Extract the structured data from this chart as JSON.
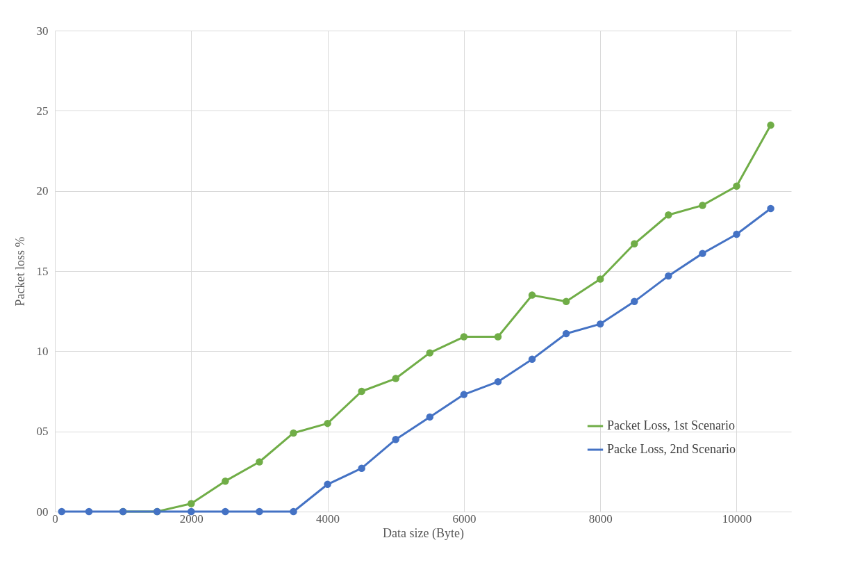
{
  "chart_data": {
    "type": "line",
    "xlabel": "Data size (Byte)",
    "ylabel": "Packet loss %",
    "x": [
      100,
      500,
      1000,
      1500,
      2000,
      2500,
      3000,
      3500,
      4000,
      4500,
      5000,
      5500,
      6000,
      6500,
      7000,
      7500,
      8000,
      8500,
      9000,
      9500,
      10000,
      10500
    ],
    "series": [
      {
        "name": "Packet Loss, 1st Scenario",
        "color": "#70ad47",
        "values": [
          null,
          null,
          0,
          0,
          0.5,
          1.9,
          3.1,
          4.9,
          5.5,
          7.5,
          8.3,
          9.9,
          10.9,
          10.9,
          13.5,
          13.1,
          14.5,
          16.7,
          18.5,
          19.1,
          20.3,
          24.1
        ]
      },
      {
        "name": "Packe Loss, 2nd Scenario",
        "color": "#4472c4",
        "values": [
          0,
          0,
          0,
          0,
          0,
          0,
          0,
          0,
          1.7,
          2.7,
          4.5,
          5.9,
          7.3,
          8.1,
          9.5,
          11.1,
          11.7,
          13.1,
          14.7,
          16.1,
          17.3,
          18.9
        ]
      }
    ],
    "xlim": [
      0,
      10800
    ],
    "xticks": [
      0,
      2000,
      4000,
      6000,
      8000,
      10000
    ],
    "ylim": [
      0,
      30
    ],
    "yticks": [
      {
        "value": 0,
        "label": "00"
      },
      {
        "value": 5,
        "label": "05"
      },
      10,
      15,
      20,
      25,
      30
    ],
    "grid": true,
    "legend": "bottom right",
    "marker": "circle",
    "line_style": "solid"
  }
}
